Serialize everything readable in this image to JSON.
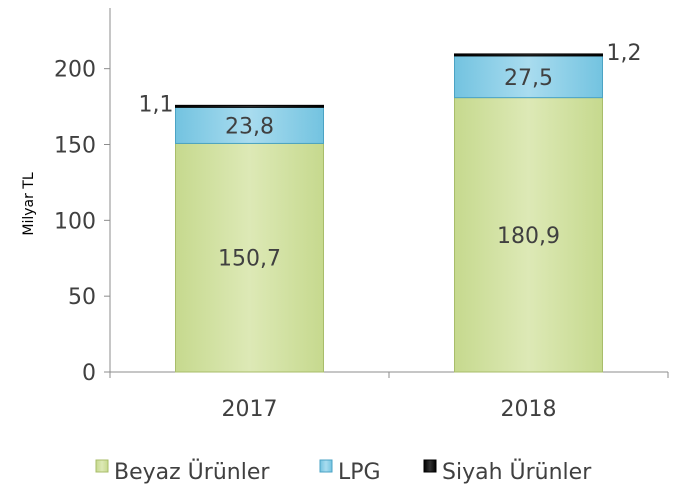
{
  "chart_data": {
    "type": "bar",
    "stacked": true,
    "categories": [
      "2017",
      "2018"
    ],
    "series": [
      {
        "name": "Beyaz Ürünler",
        "values": [
          150.7,
          180.9
        ],
        "labels": [
          "150,7",
          "180,9"
        ],
        "color": "#d4e3a6",
        "edge": "#a8bd6a"
      },
      {
        "name": "LPG",
        "values": [
          23.8,
          27.5
        ],
        "labels": [
          "23,8",
          "27,5"
        ],
        "color": "#8ed0e8",
        "edge": "#4ba3c4"
      },
      {
        "name": "Siyah Ürünler",
        "values": [
          1.1,
          1.2
        ],
        "labels": [
          "1,1",
          "1,2"
        ],
        "color": "#1a1a1a",
        "edge": "#000000"
      }
    ],
    "ylabel": "Milyar TL",
    "yticks": [
      "0",
      "50",
      "100",
      "150",
      "200"
    ],
    "ylim": [
      0,
      240
    ],
    "legend_position": "bottom",
    "grid": false
  }
}
